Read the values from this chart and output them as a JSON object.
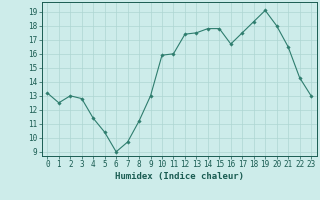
{
  "x": [
    0,
    1,
    2,
    3,
    4,
    5,
    6,
    7,
    8,
    9,
    10,
    11,
    12,
    13,
    14,
    15,
    16,
    17,
    18,
    19,
    20,
    21,
    22,
    23
  ],
  "y": [
    13.2,
    12.5,
    13.0,
    12.8,
    11.4,
    10.4,
    9.0,
    9.7,
    11.2,
    13.0,
    15.9,
    16.0,
    17.4,
    17.5,
    17.8,
    17.8,
    16.7,
    17.5,
    18.3,
    19.1,
    18.0,
    16.5,
    14.3,
    13.0
  ],
  "line_color": "#2e7d6e",
  "marker": "D",
  "marker_size": 1.8,
  "line_width": 0.8,
  "bg_color": "#cdecea",
  "grid_color": "#aed6d2",
  "xlabel": "Humidex (Indice chaleur)",
  "xlabel_fontsize": 6.5,
  "xlabel_color": "#1a5c52",
  "xlabel_weight": "bold",
  "tick_color": "#1a5c52",
  "tick_fontsize": 5.5,
  "xlim": [
    -0.5,
    23.5
  ],
  "ylim": [
    8.7,
    19.7
  ],
  "yticks": [
    9,
    10,
    11,
    12,
    13,
    14,
    15,
    16,
    17,
    18,
    19
  ],
  "xticks": [
    0,
    1,
    2,
    3,
    4,
    5,
    6,
    7,
    8,
    9,
    10,
    11,
    12,
    13,
    14,
    15,
    16,
    17,
    18,
    19,
    20,
    21,
    22,
    23
  ]
}
